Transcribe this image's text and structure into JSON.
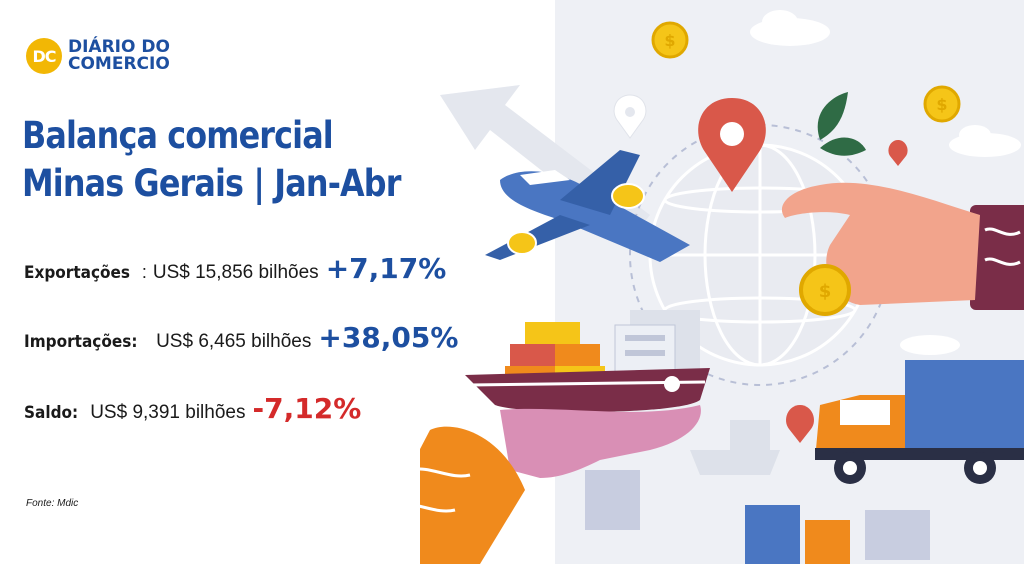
{
  "logo": {
    "badge": "DC",
    "line1": "DIÁRIO DO",
    "line2": "COMERCIO"
  },
  "title": {
    "line1": "Balança comercial",
    "line2": "Minas Gerais | Jan-Abr"
  },
  "stats": [
    {
      "label": "Exportações",
      "value": "US$ 15,856 bilhões",
      "change": "+7,17%",
      "color": "#1d4fa0",
      "sep": ":"
    },
    {
      "label": "Importações:",
      "value": "US$ 6,465 bilhões",
      "change": "+38,05%",
      "color": "#1d4fa0",
      "sep": ""
    },
    {
      "label": "Saldo:",
      "value": "US$ 9,391 bilhões",
      "change": "-7,12%",
      "color": "#d42a2a",
      "sep": ""
    }
  ],
  "source": "Fonte: Mdic",
  "colors": {
    "brand_blue": "#1d4fa0",
    "brand_yellow": "#f2b705",
    "negative_red": "#d42a2a"
  }
}
